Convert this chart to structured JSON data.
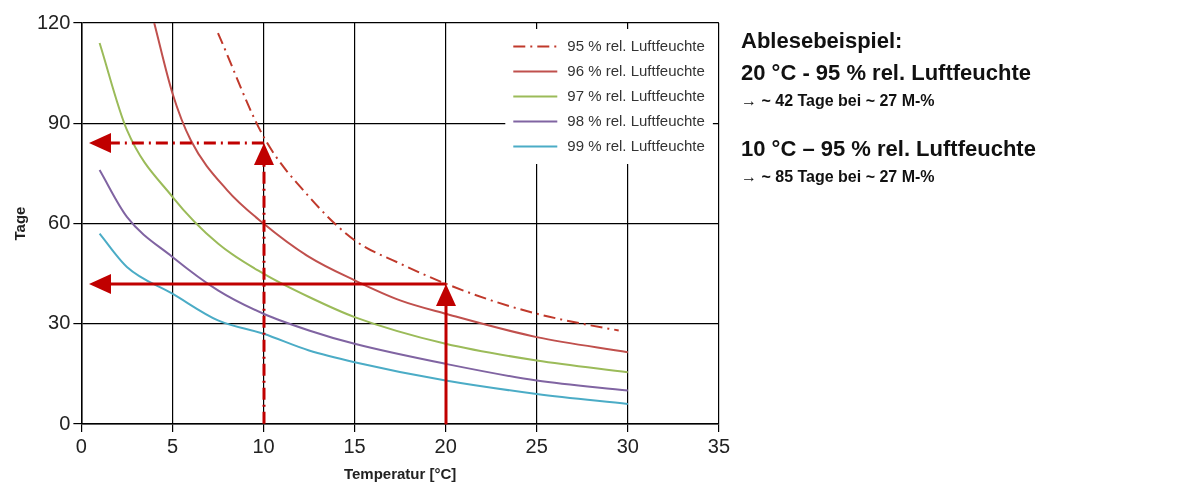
{
  "chart_data": {
    "type": "line",
    "xlabel": "Temperatur [°C]",
    "ylabel": "Tage",
    "xlim": [
      0,
      35
    ],
    "ylim": [
      0,
      120
    ],
    "xticks": [
      0,
      5,
      10,
      15,
      20,
      25,
      30,
      35
    ],
    "yticks": [
      0,
      30,
      60,
      90,
      120
    ],
    "grid": true,
    "legend": "top right",
    "marker": "none",
    "annotations": [
      "Ablesebeispiel:",
      "20 °C - 95 % rel. Luftfeuchte",
      "→ ~ 42 Tage bei ~ 27 M-%",
      "10 °C – 95 % rel. Luftfeuchte",
      "→ ~ 85 Tage bei ~ 27 M-%"
    ],
    "series": [
      {
        "name": "95 % rel. Luftfeuchte",
        "color": "#c0392b",
        "line_style": "dashed",
        "x": [
          7.5,
          10,
          12.5,
          15,
          17.5,
          20,
          22.5,
          25,
          27.5,
          29.5
        ],
        "values": [
          117,
          86,
          68,
          55,
          48,
          42,
          37,
          33,
          30,
          28
        ]
      },
      {
        "name": "96 % rel. Luftfeuchte",
        "color": "#c0504d",
        "line_style": "solid",
        "x": [
          4,
          5,
          6,
          8,
          10,
          12.5,
          15,
          17.5,
          20,
          25,
          30
        ],
        "values": [
          120,
          99,
          85,
          70,
          60,
          50,
          43,
          37,
          33,
          26,
          21.5
        ]
      },
      {
        "name": "97 % rel. Luftfeuchte",
        "color": "#9bbb59",
        "line_style": "solid",
        "x": [
          1,
          2.5,
          5,
          7.5,
          10,
          12.5,
          15,
          20,
          25,
          30
        ],
        "values": [
          114,
          88,
          68,
          54,
          45,
          38,
          32,
          24,
          19,
          15.5
        ]
      },
      {
        "name": "98 % rel. Luftfeuchte",
        "color": "#8064a2",
        "line_style": "solid",
        "x": [
          1,
          2.5,
          5,
          7.5,
          10,
          12.5,
          15,
          20,
          25,
          30
        ],
        "values": [
          76,
          62,
          50,
          40,
          33,
          28,
          24,
          18,
          13,
          10
        ]
      },
      {
        "name": "99 % rel. Luftfeuchte",
        "color": "#4bacc6",
        "line_style": "solid",
        "x": [
          1,
          2.5,
          5,
          7.5,
          10,
          12.5,
          15,
          20,
          25,
          30
        ],
        "values": [
          57,
          47,
          39,
          31,
          27,
          22,
          18.5,
          13,
          9,
          6
        ]
      }
    ]
  }
}
